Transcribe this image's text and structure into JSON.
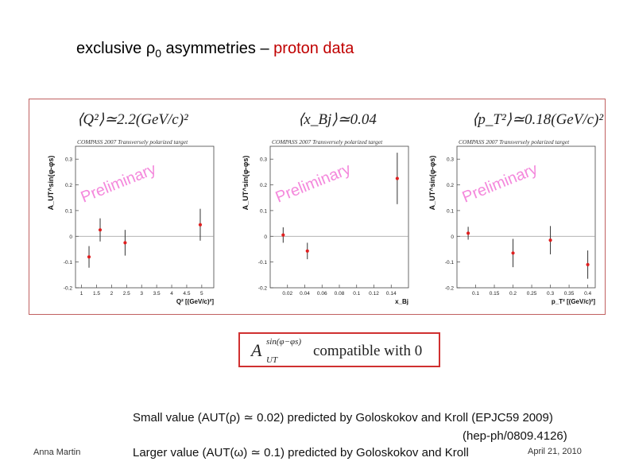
{
  "title": {
    "prefix": "exclusive ",
    "rho": "ρ",
    "rho_sub": "0",
    "middle": " asymmetries – ",
    "highlight": "proton data"
  },
  "colors": {
    "title_highlight": "#c00000",
    "data_point": "#e02020",
    "frame": "#c06060",
    "watermark": "#f060d0",
    "box": "#d03030"
  },
  "means": {
    "q2": "⟨Q²⟩≃2.2(GeV/c)²",
    "xbj": "⟨x_Bj⟩≃0.04",
    "pt2": "⟨p_T²⟩≃0.18(GeV/c)²"
  },
  "compat": {
    "symbol": "A",
    "sup": "sin(φ−φs)",
    "sub": "UT",
    "text": "compatible with  0"
  },
  "notes": {
    "line1": "Small value (AUT(ρ) ≃ 0.02) predicted by Goloskokov and Kroll (EPJC59 2009)",
    "line2": "(hep-ph/0809.4126)",
    "line3": "Larger value (AUT(ω) ≃ 0.1) predicted by Goloskokov and Kroll"
  },
  "footer": {
    "author": "Anna Martin",
    "date": "April 21, 2010"
  },
  "chart_data": [
    {
      "type": "scatter",
      "header": "COMPASS 2007 Transversely polarized target",
      "watermark": "Preliminary",
      "ylabel": "A_UT^sin(φ-φs)",
      "xlabel": "Q² [(GeV/c)²]",
      "xlim": [
        0.8,
        5.4
      ],
      "ylim": [
        -0.2,
        0.35
      ],
      "xticks": [
        1,
        1.5,
        2,
        2.5,
        3,
        3.5,
        4,
        4.5,
        5
      ],
      "yticks": [
        -0.2,
        -0.1,
        0,
        0.1,
        0.2,
        0.3
      ],
      "points": [
        {
          "x": 1.25,
          "y": -0.08,
          "err": 0.042
        },
        {
          "x": 1.62,
          "y": 0.025,
          "err": 0.045
        },
        {
          "x": 2.45,
          "y": -0.025,
          "err": 0.05
        },
        {
          "x": 4.95,
          "y": 0.045,
          "err": 0.062
        }
      ]
    },
    {
      "type": "scatter",
      "header": "COMPASS 2007 Transversely polarized target",
      "watermark": "Preliminary",
      "ylabel": "A_UT^sin(φ-φs)",
      "xlabel": "x_Bj",
      "xlim": [
        0,
        0.16
      ],
      "ylim": [
        -0.2,
        0.35
      ],
      "xticks": [
        0.02,
        0.04,
        0.06,
        0.08,
        0.1,
        0.12,
        0.14
      ],
      "yticks": [
        -0.2,
        -0.1,
        0,
        0.1,
        0.2,
        0.3
      ],
      "points": [
        {
          "x": 0.015,
          "y": 0.005,
          "err": 0.03
        },
        {
          "x": 0.043,
          "y": -0.057,
          "err": 0.032
        },
        {
          "x": 0.147,
          "y": 0.225,
          "err": 0.1
        }
      ]
    },
    {
      "type": "scatter",
      "header": "COMPASS 2007 Transversely polarized target",
      "watermark": "Preliminary",
      "ylabel": "A_UT^sin(φ-φs)",
      "xlabel": "p_T² [(GeV/c)²]",
      "xlim": [
        0.05,
        0.42
      ],
      "ylim": [
        -0.2,
        0.35
      ],
      "xticks": [
        0.1,
        0.15,
        0.2,
        0.25,
        0.3,
        0.35,
        0.4
      ],
      "yticks": [
        -0.2,
        -0.1,
        0,
        0.1,
        0.2,
        0.3
      ],
      "points": [
        {
          "x": 0.08,
          "y": 0.012,
          "err": 0.025
        },
        {
          "x": 0.2,
          "y": -0.065,
          "err": 0.055
        },
        {
          "x": 0.3,
          "y": -0.015,
          "err": 0.055
        },
        {
          "x": 0.4,
          "y": -0.11,
          "err": 0.055
        }
      ]
    }
  ]
}
